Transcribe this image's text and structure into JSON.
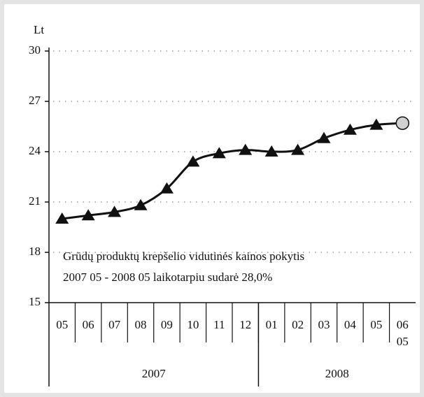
{
  "chart_data": {
    "type": "line",
    "y_label": "Lt",
    "categories": [
      "05",
      "06",
      "07",
      "08",
      "09",
      "10",
      "11",
      "12",
      "01",
      "02",
      "03",
      "04",
      "05",
      "06 05"
    ],
    "groups": [
      {
        "label": "2007",
        "span": 8
      },
      {
        "label": "2008",
        "span": 6
      }
    ],
    "series": [
      {
        "name": "Grūdų produktų krepšelio vidutinė kaina",
        "color": "#111111",
        "marker": "triangle",
        "last_marker_color": "#d0d0d0",
        "values": [
          20.0,
          20.2,
          20.4,
          20.8,
          21.8,
          23.4,
          23.9,
          24.1,
          24.0,
          24.1,
          24.8,
          25.3,
          25.6,
          25.7
        ]
      }
    ],
    "annotation": [
      "Grūdų produktų krepšelio vidutinės kainos pokytis",
      "2007 05 - 2008 05 laikotarpiu sudarė  28,0%"
    ],
    "ylim": [
      15,
      30
    ],
    "yticks": [
      15,
      18,
      21,
      24,
      27,
      30
    ],
    "grid": true
  }
}
